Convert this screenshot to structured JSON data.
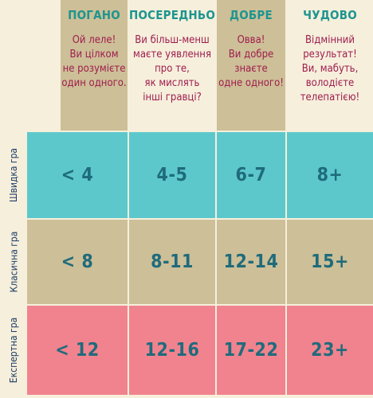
{
  "columns": [
    {
      "title": "ПОГАНО",
      "desc": "Ой леле!\nВи цілком\nне розумієте\nодин одного."
    },
    {
      "title": "ПОСЕРЕДНЬО",
      "desc": "Ви більш-менш\nмаєте уявлення\nпро те,\nяк мислять\nінші гравці?"
    },
    {
      "title": "ДОБРЕ",
      "desc": "Овва!\nВи добре\nзнаєте\nодне одного!"
    },
    {
      "title": "ЧУДОВО",
      "desc": "Відмінний\nрезультат!\nВи, мабуть,\nволодієте\nтелепатією!"
    }
  ],
  "rows": [
    {
      "label": "Швидка гра",
      "color": "#5cc8cc",
      "values": [
        "< 4",
        "4-5",
        "6-7",
        "8+"
      ]
    },
    {
      "label": "Класична гра",
      "color": "#cdbf97",
      "values": [
        "< 8",
        "8-11",
        "12-14",
        "15+"
      ]
    },
    {
      "label": "Експертна гра",
      "color": "#f0838e",
      "values": [
        "< 12",
        "12-16",
        "17-22",
        "23+"
      ]
    }
  ]
}
